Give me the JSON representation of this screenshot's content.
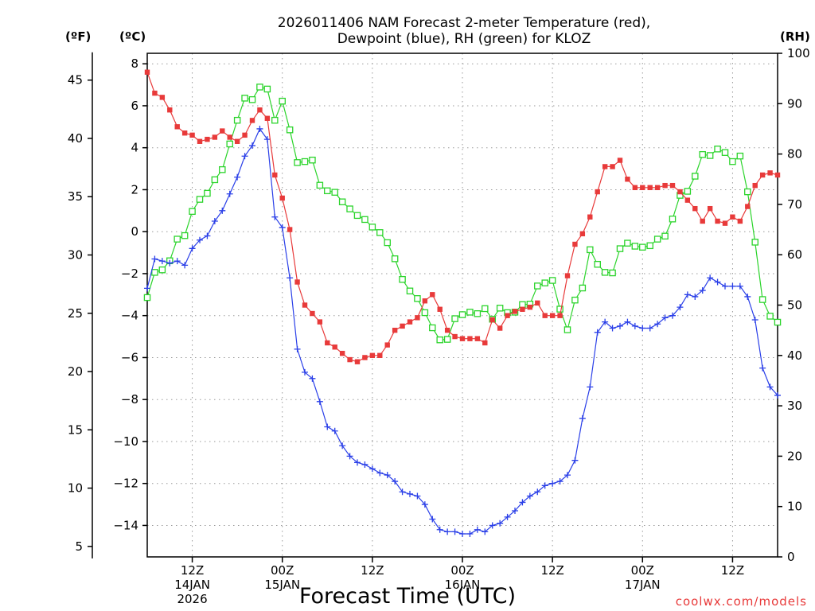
{
  "chart_data": {
    "type": "line",
    "title": [
      "2026011406 NAM Forecast 2-meter Temperature (red),",
      "Dewpoint (blue), RH (green) for KLOZ"
    ],
    "xlabel": "Forecast Time (UTC)",
    "credit": "coolwx.com/models",
    "unit_labels": {
      "fahrenheit": "(ºF)",
      "celsius": "(ºC)",
      "rh": "(RH)"
    },
    "x_units": "forecast hours from 2026-01-14 06Z",
    "x_range": [
      0,
      84
    ],
    "x_ticks": [
      {
        "hour": 6,
        "lines": [
          "12Z",
          "14JAN",
          "2026"
        ]
      },
      {
        "hour": 18,
        "lines": [
          "00Z",
          "15JAN"
        ]
      },
      {
        "hour": 30,
        "lines": [
          "12Z"
        ]
      },
      {
        "hour": 42,
        "lines": [
          "00Z",
          "16JAN"
        ]
      },
      {
        "hour": 54,
        "lines": [
          "12Z"
        ]
      },
      {
        "hour": 66,
        "lines": [
          "00Z",
          "17JAN"
        ]
      },
      {
        "hour": 78,
        "lines": [
          "12Z"
        ]
      }
    ],
    "axes": {
      "celsius": {
        "range": [
          -15.5,
          8.5
        ],
        "ticks": [
          8,
          6,
          4,
          2,
          0,
          -2,
          -4,
          -6,
          -8,
          -10,
          -12,
          -14
        ],
        "tick_labels": [
          "8",
          "6",
          "4",
          "2",
          "0",
          "−2",
          "−4",
          "−6",
          "−8",
          "−10",
          "−12",
          "−14"
        ]
      },
      "fahrenheit": {
        "ticks": [
          45,
          40,
          35,
          30,
          25,
          20,
          15,
          10,
          5
        ],
        "tick_labels": [
          "45",
          "40",
          "35",
          "30",
          "25",
          "20",
          "15",
          "10",
          "5"
        ]
      },
      "rh": {
        "range": [
          0,
          100
        ],
        "ticks": [
          100,
          90,
          80,
          70,
          60,
          50,
          40,
          30,
          20,
          10,
          0
        ],
        "tick_labels": [
          "100",
          "90",
          "80",
          "70",
          "60",
          "50",
          "40",
          "30",
          "20",
          "10",
          "0"
        ]
      }
    },
    "grid": true,
    "series": [
      {
        "name": "Temperature",
        "color": "#e83a3a",
        "marker": "filled-square",
        "axis": "celsius",
        "values": [
          7.6,
          6.6,
          6.4,
          5.8,
          5.0,
          4.7,
          4.6,
          4.3,
          4.4,
          4.5,
          4.8,
          4.5,
          4.3,
          4.6,
          5.3,
          5.8,
          5.4,
          2.7,
          1.6,
          0.1,
          -2.4,
          -3.5,
          -3.9,
          -4.3,
          -5.3,
          -5.5,
          -5.8,
          -6.1,
          -6.2,
          -6.0,
          -5.9,
          -5.9,
          -5.4,
          -4.7,
          -4.5,
          -4.3,
          -4.1,
          -3.3,
          -3.0,
          -3.7,
          -4.7,
          -5.0,
          -5.1,
          -5.1,
          -5.1,
          -5.3,
          -4.2,
          -4.6,
          -4.0,
          -3.8,
          -3.7,
          -3.6,
          -3.4,
          -4.0,
          -4.0,
          -4.0,
          -2.1,
          -0.6,
          -0.1,
          0.7,
          1.9,
          3.1,
          3.1,
          3.4,
          2.5,
          2.1,
          2.1,
          2.1,
          2.1,
          2.2,
          2.2,
          1.9,
          1.5,
          1.1,
          0.5,
          1.1,
          0.5,
          0.4,
          0.7,
          0.5,
          1.2,
          2.2,
          2.7,
          2.8,
          2.7
        ]
      },
      {
        "name": "Dewpoint",
        "color": "#2a3fe8",
        "marker": "plus",
        "axis": "celsius",
        "values": [
          -2.7,
          -1.3,
          -1.4,
          -1.5,
          -1.4,
          -1.6,
          -0.8,
          -0.4,
          -0.2,
          0.5,
          1.0,
          1.8,
          2.6,
          3.6,
          4.1,
          4.9,
          4.4,
          0.7,
          0.2,
          -2.2,
          -5.6,
          -6.7,
          -7.0,
          -8.1,
          -9.3,
          -9.5,
          -10.2,
          -10.7,
          -11.0,
          -11.1,
          -11.3,
          -11.5,
          -11.6,
          -11.9,
          -12.4,
          -12.5,
          -12.6,
          -13.0,
          -13.7,
          -14.2,
          -14.3,
          -14.3,
          -14.4,
          -14.4,
          -14.2,
          -14.3,
          -14.0,
          -13.9,
          -13.6,
          -13.3,
          -12.9,
          -12.6,
          -12.4,
          -12.1,
          -12.0,
          -11.9,
          -11.6,
          -10.9,
          -8.9,
          -7.4,
          -4.8,
          -4.3,
          -4.6,
          -4.5,
          -4.3,
          -4.5,
          -4.6,
          -4.6,
          -4.4,
          -4.1,
          -4.0,
          -3.6,
          -3.0,
          -3.1,
          -2.8,
          -2.2,
          -2.4,
          -2.6,
          -2.6,
          -2.6,
          -3.1,
          -4.2,
          -6.5,
          -7.4,
          -7.8
        ]
      },
      {
        "name": "RH",
        "color": "#2bd42b",
        "marker": "open-square",
        "axis": "rh",
        "values": [
          51.5,
          56.5,
          57,
          58.8,
          63.1,
          63.8,
          68.6,
          71,
          72.2,
          74.9,
          76.9,
          82,
          86.7,
          91.1,
          90.8,
          93.3,
          92.9,
          86.7,
          90.5,
          84.8,
          78.3,
          78.5,
          78.8,
          73.8,
          72.7,
          72.4,
          70.5,
          69.1,
          67.8,
          67,
          65.5,
          64.4,
          62.4,
          59.2,
          55.1,
          52.8,
          51.3,
          48.5,
          45.5,
          43.1,
          43.2,
          47.3,
          48.1,
          48.6,
          48.3,
          49.3,
          47.2,
          49.4,
          48.5,
          48.6,
          50.1,
          50.2,
          53.8,
          54.4,
          54.9,
          49.2,
          45.1,
          51,
          53.4,
          61,
          58.1,
          56.5,
          56.4,
          61.2,
          62.3,
          61.7,
          61.5,
          61.8,
          63.1,
          63.7,
          67.1,
          71.8,
          72.6,
          75.6,
          79.9,
          79.7,
          81,
          80.3,
          78.5,
          79.6,
          72.5,
          62.5,
          51.1,
          47.8,
          46.6
        ]
      }
    ]
  }
}
